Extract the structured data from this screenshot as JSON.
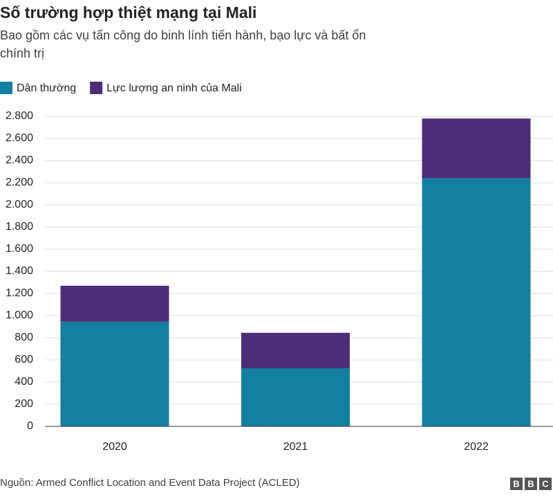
{
  "chart_data": {
    "type": "stacked_bar",
    "title": "Số trường hợp thiệt mạng tại Mali",
    "subtitle": [
      "Bao gồm các vụ tấn công do binh lính tiến hành, bạo lực và bất ổn",
      "chính trị"
    ],
    "categories": [
      "2020",
      "2021",
      "2022"
    ],
    "series": [
      {
        "name": "Dân thường",
        "color": "#1380a1",
        "values": [
          945,
          525,
          2240
        ]
      },
      {
        "name": "Lực lượng an ninh của Mali",
        "color": "#4e2d78",
        "values": [
          325,
          320,
          540
        ]
      }
    ],
    "ylim": [
      0,
      2800
    ],
    "yticks": [
      0,
      200,
      400,
      600,
      800,
      {
        "value": 1000,
        "label": "1.000"
      },
      {
        "value": 1200,
        "label": "1.200"
      },
      {
        "value": 1400,
        "label": "1.400"
      },
      {
        "value": 1600,
        "label": "1.600"
      },
      {
        "value": 1800,
        "label": "1.800"
      },
      {
        "value": 2000,
        "label": "2.000"
      },
      {
        "value": 2200,
        "label": "2.200"
      },
      {
        "value": 2400,
        "label": "2.400"
      },
      {
        "value": 2600,
        "label": "2.600"
      },
      {
        "value": 2800,
        "label": "2.800"
      }
    ],
    "grid": true,
    "source": "Nguồn: Armed Conflict Location and Event Data Project (ACLED)",
    "logo": [
      "B",
      "B",
      "C"
    ]
  }
}
